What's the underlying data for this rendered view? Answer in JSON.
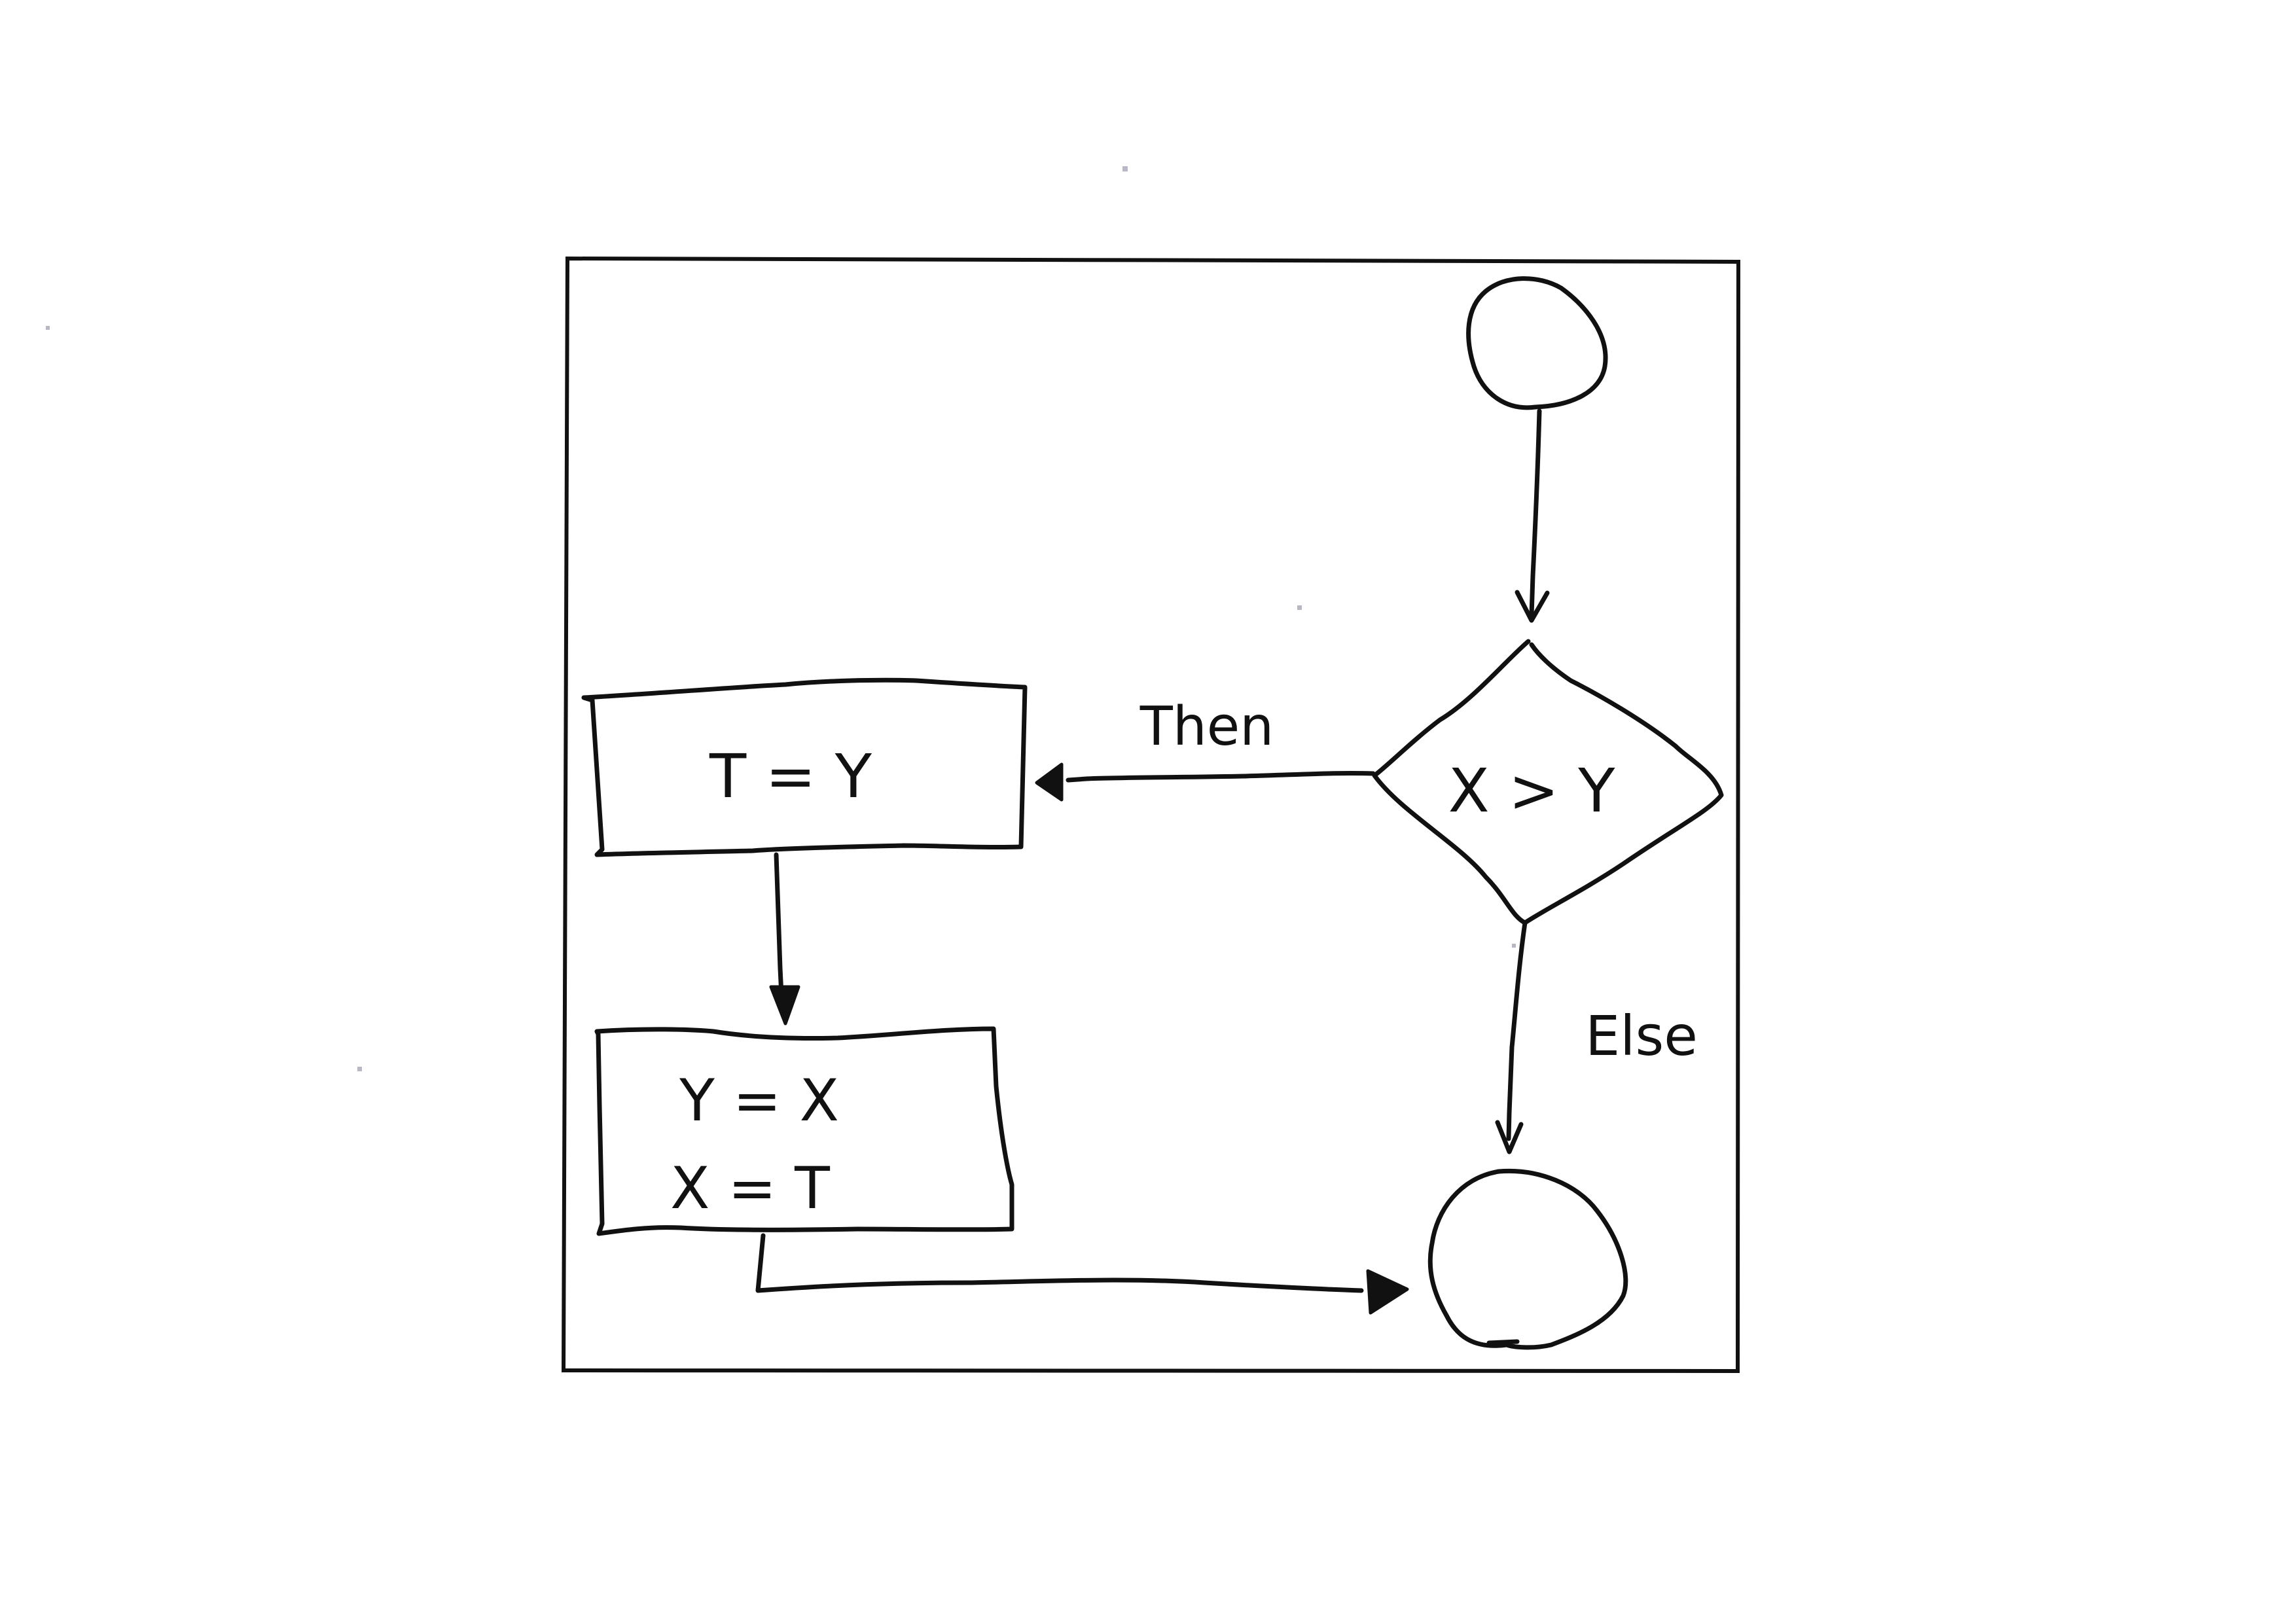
{
  "diagram": {
    "start_node": {
      "label": ""
    },
    "decision": {
      "label": "X > Y"
    },
    "process_1": {
      "label": "T = Y"
    },
    "process_2": {
      "line_1": "Y = X",
      "line_2": "X = T"
    },
    "end_node": {
      "label": ""
    },
    "edges": {
      "then": {
        "label": "Then"
      },
      "else": {
        "label": "Else"
      }
    }
  }
}
